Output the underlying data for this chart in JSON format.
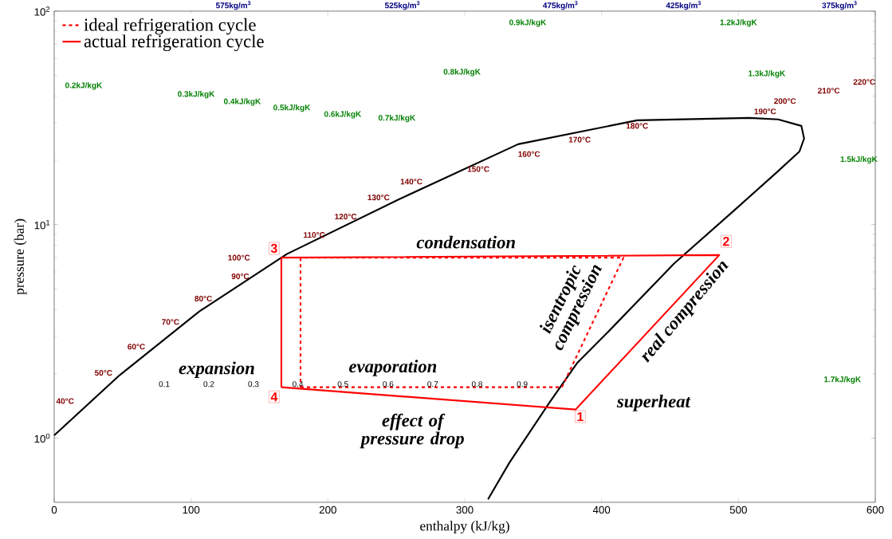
{
  "chart_data": {
    "type": "line",
    "xlabel": "enthalpy (kJ/kg)",
    "ylabel": "pressure (bar)",
    "log": "y",
    "legend": "top left",
    "marker": "none",
    "xlim": [
      0,
      600
    ],
    "xticks": [
      0,
      100,
      200,
      300,
      400,
      500,
      600
    ],
    "ylim": [
      0.5,
      100
    ],
    "yticks": [
      {
        "value": 1,
        "label": "10$^{0}$"
      },
      {
        "value": 10,
        "label": "10$^{1}$"
      },
      {
        "value": 100,
        "label": "10$^{2}$"
      }
    ],
    "series": [
      {
        "color": "#000000",
        "line_style": "solid",
        "x": [
          0,
          47.8,
          106,
          170,
          251.6,
          339,
          426,
          508,
          529,
          546,
          548,
          544.6,
          527.7,
          501,
          453,
          403,
          382,
          361.7,
          332.6,
          317
        ],
        "values": [
          1.03,
          1.97,
          3.92,
          7.28,
          13.1,
          23.8,
          30.8,
          31.6,
          31.1,
          29.0,
          25.3,
          22.0,
          17.5,
          12.3,
          6.57,
          3.06,
          2.24,
          1.46,
          0.766,
          0.516
        ]
      },
      {
        "name": "ideal refrigeration cycle",
        "color": "#ff0000",
        "line_style": "dashed",
        "x": [
          180,
          371,
          416,
          180
        ],
        "values": [
          1.73,
          1.73,
          7.0,
          7.0
        ]
      },
      {
        "name": "actual refrigeration cycle",
        "color": "#ff0000",
        "line_style": "solid",
        "x": [
          166,
          381,
          486,
          166
        ],
        "values": [
          1.73,
          1.36,
          7.2,
          7.0
        ]
      },
      {
        "color": "#ff0000",
        "line_style": "dashed",
        "x": [
          180,
          180
        ],
        "values": [
          7.0,
          1.73
        ]
      },
      {
        "color": "#ff0000",
        "line_style": "solid",
        "x": [
          166,
          166
        ],
        "values": [
          7.0,
          1.73
        ]
      }
    ],
    "annotations": [
      "575kg/m$^{3}$",
      "525kg/m$^{3}$",
      "475kg/m$^{3}$",
      "425kg/m$^{3}$",
      "375kg/m$^{3}$",
      "0.2kJ/kgK",
      "0.3kJ/kgK",
      "0.4kJ/kgK",
      "0.5kJ/kgK",
      "0.6kJ/kgK",
      "0.7kJ/kgK",
      "0.8kJ/kgK",
      "0.9kJ/kgK",
      "1.2kJ/kgK",
      "1.3kJ/kgK",
      "1.5kJ/kgK",
      "1.7kJ/kgK",
      "40°C",
      "50°C",
      "60°C",
      "70°C",
      "80°C",
      "90°C",
      "100°C",
      "110°C",
      "120°C",
      "130°C",
      "140°C",
      "150°C",
      "160°C",
      "170°C",
      "180°C",
      "190°C",
      "200°C",
      "210°C",
      "220°C",
      "0.1",
      "0.2",
      "0.3",
      "0.4",
      "0.5",
      "0.6",
      "0.7",
      "0.8",
      "0.9",
      "condensation",
      "evaporation",
      "expansion",
      "isentropic compression",
      "real compression",
      "superheat",
      "effect of pressure drop",
      "1",
      "2",
      "3",
      "4"
    ]
  }
}
